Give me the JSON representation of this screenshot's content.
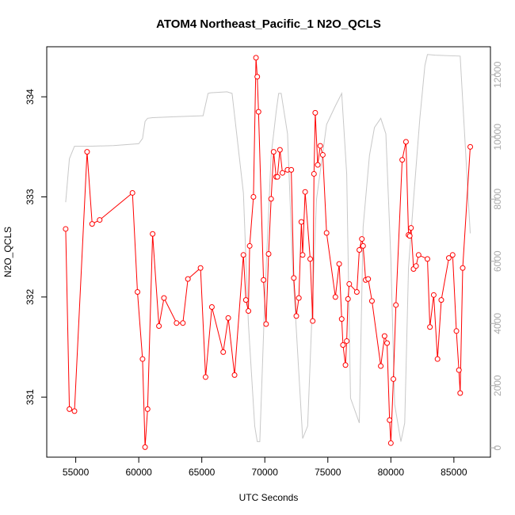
{
  "chart_data": {
    "type": "line",
    "title": "ATOM4 Northeast_Pacific_1 N2O_QCLS",
    "xlabel": "UTC Seconds",
    "ylabel": "N2O_QCLS",
    "xlim": [
      52700,
      87900
    ],
    "ylim": [
      330.4,
      334.5
    ],
    "y2lim": [
      -300,
      12900
    ],
    "x_ticks": [
      55000,
      60000,
      65000,
      70000,
      75000,
      80000,
      85000
    ],
    "x_tick_labels": [
      "55000",
      "60000",
      "65000",
      "70000",
      "75000",
      "80000",
      "85000"
    ],
    "y_ticks": [
      331,
      332,
      333,
      334
    ],
    "y_tick_labels": [
      "331",
      "332",
      "333",
      "334"
    ],
    "y2_ticks": [
      0,
      2000,
      4000,
      6000,
      8000,
      10000,
      12000
    ],
    "y2_tick_labels": [
      "0",
      "2000",
      "4000",
      "6000",
      "8000",
      "10000",
      "12000"
    ],
    "grid": false,
    "series": [
      {
        "axis": "left",
        "color": "#ff0000",
        "marker": "open-circle",
        "x": [
          54200,
          54500,
          54900,
          55900,
          56300,
          56900,
          59500,
          59900,
          60300,
          60500,
          60700,
          61100,
          61600,
          62000,
          63000,
          63500,
          63900,
          64900,
          65300,
          65800,
          66700,
          67100,
          67600,
          68300,
          68500,
          68700,
          68800,
          69100,
          69300,
          69400,
          69500,
          69900,
          70100,
          70300,
          70500,
          70700,
          70900,
          71000,
          71200,
          71400,
          71800,
          72100,
          72300,
          72500,
          72700,
          72900,
          73000,
          73200,
          73600,
          73800,
          73900,
          74000,
          74200,
          74400,
          74600,
          74900,
          75600,
          75900,
          76100,
          76200,
          76400,
          76500,
          76600,
          76700,
          77300,
          77500,
          77700,
          77800,
          78000,
          78200,
          78500,
          79200,
          79500,
          79700,
          79900,
          80000,
          80200,
          80400,
          80900,
          81200,
          81400,
          81500,
          81600,
          81800,
          82000,
          82200,
          82900,
          83100,
          83400,
          83700,
          84000,
          84600,
          84900,
          85200,
          85400,
          85500,
          85700,
          86300
        ],
        "y": [
          332.68,
          330.88,
          330.86,
          333.45,
          332.73,
          332.77,
          333.04,
          332.05,
          331.38,
          330.5,
          330.88,
          332.63,
          331.71,
          331.99,
          331.74,
          331.74,
          332.18,
          332.29,
          331.2,
          331.9,
          331.45,
          331.79,
          331.22,
          332.42,
          331.97,
          331.86,
          332.51,
          333.0,
          334.39,
          334.2,
          333.85,
          332.17,
          331.73,
          332.43,
          332.98,
          333.45,
          333.2,
          333.2,
          333.47,
          333.24,
          333.27,
          333.27,
          332.19,
          331.81,
          331.99,
          332.75,
          332.42,
          333.05,
          332.38,
          331.76,
          333.23,
          333.84,
          333.32,
          333.51,
          333.42,
          332.64,
          332.0,
          332.33,
          331.78,
          331.52,
          331.32,
          331.56,
          331.98,
          332.13,
          332.05,
          332.47,
          332.58,
          332.51,
          332.17,
          332.18,
          331.96,
          331.31,
          331.61,
          331.54,
          330.77,
          330.54,
          331.18,
          331.92,
          333.37,
          333.55,
          332.62,
          332.61,
          332.69,
          332.28,
          332.31,
          332.42,
          332.38,
          331.7,
          332.02,
          331.38,
          331.97,
          332.39,
          332.42,
          331.66,
          331.27,
          331.04,
          332.29,
          333.5
        ]
      },
      {
        "axis": "right",
        "color": "#c8c8c8",
        "marker": "none",
        "x": [
          54200,
          54500,
          54900,
          56000,
          58000,
          60000,
          60300,
          60500,
          60700,
          61100,
          63000,
          65100,
          65500,
          65700,
          67000,
          67400,
          68300,
          68700,
          69200,
          69400,
          69600,
          70000,
          70500,
          70900,
          71100,
          71300,
          71800,
          72200,
          73000,
          73400,
          74100,
          74900,
          75600,
          76100,
          76500,
          76800,
          77500,
          77800,
          78300,
          78700,
          79200,
          79600,
          80000,
          80300,
          80800,
          81100,
          81400,
          81800,
          82300,
          82700,
          82900,
          83500,
          85500,
          86300
        ],
        "y": [
          7900,
          9300,
          9700,
          9700,
          9720,
          9780,
          9950,
          10500,
          10600,
          10620,
          10650,
          10680,
          11400,
          11420,
          11450,
          11400,
          8200,
          4000,
          700,
          200,
          200,
          4800,
          9400,
          10800,
          11400,
          11400,
          10100,
          5900,
          300,
          700,
          8000,
          10400,
          11000,
          11400,
          8800,
          1600,
          800,
          7100,
          9400,
          10300,
          10600,
          10100,
          6100,
          1400,
          200,
          800,
          5800,
          8000,
          10600,
          12300,
          12650,
          12630,
          12600,
          6900
        ]
      }
    ]
  }
}
